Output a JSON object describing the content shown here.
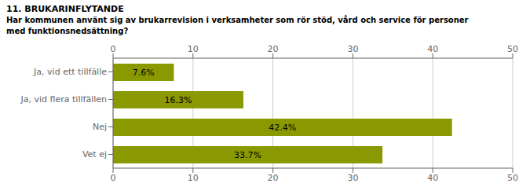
{
  "chart_data": {
    "type": "bar",
    "title": "11. BRUKARINFLYTANDE",
    "subtitle": "Har kommunen använt sig av brukarrevision i verksamheter som rör stöd, vård och service för personer\nmed funktionsnedsättning?",
    "categories": [
      "Ja, vid ett tillfälle",
      "Ja, vid flera tillfällen",
      "Nej",
      "Vet ej"
    ],
    "values": [
      7.6,
      16.3,
      42.4,
      33.7
    ],
    "value_labels": [
      "7.6%",
      "16.3%",
      "42.4%",
      "33.7%"
    ],
    "color": "#8B9900",
    "xlim": [
      0,
      50
    ],
    "xticks": [
      0,
      10,
      20,
      30,
      40,
      50
    ],
    "grid": true,
    "orientation": "horizontal",
    "data_labels": true
  }
}
